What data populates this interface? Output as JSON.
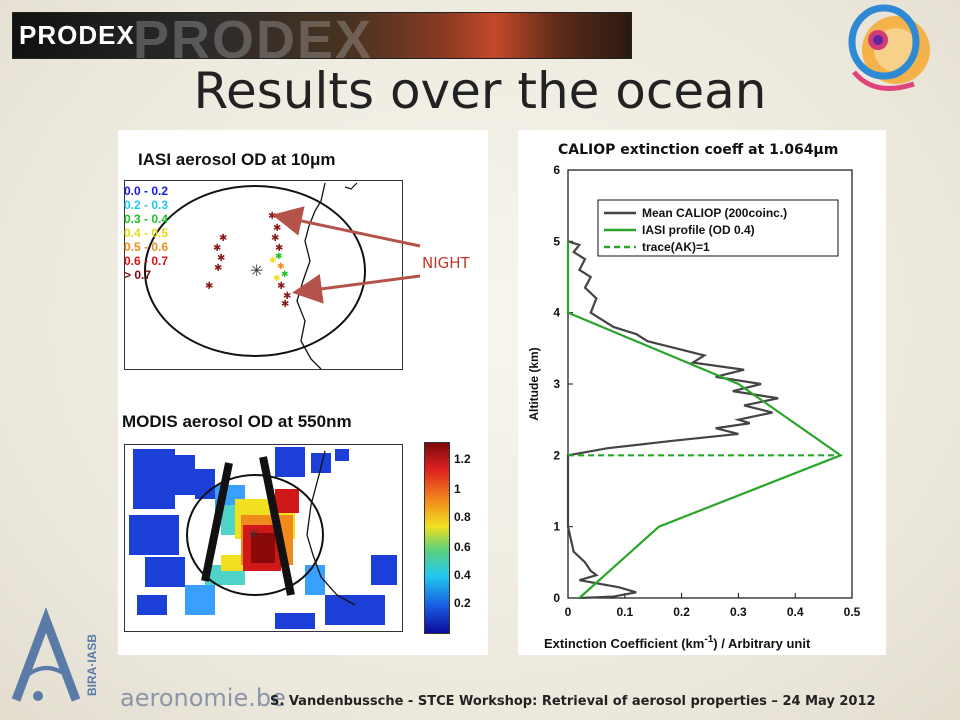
{
  "header": {
    "banner_text": "PRODEX",
    "title": "Results over the ocean"
  },
  "iasi_panel": {
    "title": "IASI aerosol OD at 10μm",
    "legend": [
      {
        "label": "0.0 - 0.2",
        "color": "#1a1adf"
      },
      {
        "label": "0.2 - 0.3",
        "color": "#22c8f0"
      },
      {
        "label": "0.3 - 0.4",
        "color": "#1fc21f"
      },
      {
        "label": "0.4 - 0.5",
        "color": "#f0e020"
      },
      {
        "label": "0.5 - 0.6",
        "color": "#f08a1c"
      },
      {
        "label": "0.6 - 0.7",
        "color": "#d01818"
      },
      {
        "label": "> 0.7",
        "color": "#7a0a0a"
      }
    ]
  },
  "modis_panel": {
    "title": "MODIS aerosol OD at 550nm",
    "colorbar_labels": [
      "1.2",
      "1",
      "0.8",
      "0.6",
      "0.4",
      "0.2"
    ]
  },
  "annotation": {
    "night_label": "NIGHT"
  },
  "caliop_panel": {
    "title": "CALIOP extinction coeff at  1.064μm",
    "ylabel": "Altitude (km)",
    "xlabel_prefix": "Extinction Coefficient (km",
    "xlabel_sup": "-1",
    "xlabel_suffix": ") / Arbitrary unit",
    "legend": [
      {
        "label": "Mean CALIOP (200coinc.)",
        "color": "#444444",
        "style": "solid"
      },
      {
        "label": "IASI profile (OD 0.4)",
        "color": "#2aa52a",
        "style": "solid"
      },
      {
        "label": "trace(AK)=1",
        "color": "#2aa52a",
        "style": "dashed"
      }
    ]
  },
  "chart_data": {
    "type": "line",
    "title": "CALIOP extinction coeff at  1.064μm",
    "xlabel": "Extinction Coefficient (km-1) / Arbitrary unit",
    "ylabel": "Altitude (km)",
    "xlim": [
      0,
      0.5
    ],
    "ylim": [
      0,
      6
    ],
    "x_ticks": [
      "0",
      "0.1",
      "0.2",
      "0.3",
      "0.4",
      "0.5"
    ],
    "y_ticks": [
      "0",
      "1",
      "2",
      "3",
      "4",
      "5",
      "6"
    ],
    "series": [
      {
        "name": "Mean CALIOP (200coinc.)",
        "points": [
          [
            0.02,
            0.0
          ],
          [
            0.08,
            0.02
          ],
          [
            0.12,
            0.08
          ],
          [
            0.09,
            0.15
          ],
          [
            0.02,
            0.25
          ],
          [
            0.05,
            0.32
          ],
          [
            0.04,
            0.38
          ],
          [
            0.03,
            0.5
          ],
          [
            0.01,
            0.65
          ],
          [
            0.0,
            1.0
          ],
          [
            0.0,
            2.0
          ],
          [
            0.07,
            2.1
          ],
          [
            0.18,
            2.2
          ],
          [
            0.3,
            2.3
          ],
          [
            0.26,
            2.38
          ],
          [
            0.32,
            2.45
          ],
          [
            0.3,
            2.5
          ],
          [
            0.36,
            2.6
          ],
          [
            0.31,
            2.7
          ],
          [
            0.37,
            2.8
          ],
          [
            0.29,
            2.9
          ],
          [
            0.34,
            3.0
          ],
          [
            0.26,
            3.1
          ],
          [
            0.31,
            3.2
          ],
          [
            0.22,
            3.3
          ],
          [
            0.24,
            3.4
          ],
          [
            0.19,
            3.5
          ],
          [
            0.14,
            3.6
          ],
          [
            0.12,
            3.7
          ],
          [
            0.08,
            3.8
          ],
          [
            0.06,
            3.9
          ],
          [
            0.04,
            4.0
          ],
          [
            0.05,
            4.2
          ],
          [
            0.03,
            4.35
          ],
          [
            0.04,
            4.5
          ],
          [
            0.02,
            4.6
          ],
          [
            0.03,
            4.75
          ],
          [
            0.01,
            4.85
          ],
          [
            0.02,
            4.95
          ],
          [
            0.0,
            5.0
          ]
        ]
      },
      {
        "name": "IASI profile (OD 0.4)",
        "points": [
          [
            0.02,
            0.0
          ],
          [
            0.16,
            1.0
          ],
          [
            0.48,
            2.0
          ],
          [
            0.3,
            3.0
          ],
          [
            0.0,
            4.0
          ],
          [
            0.0,
            5.0
          ]
        ]
      },
      {
        "name": "trace(AK)=1",
        "points": [
          [
            0.0,
            2.0
          ],
          [
            0.48,
            2.0
          ]
        ],
        "style": "dashed"
      }
    ]
  },
  "footer": {
    "org_name": "aeronomie.be",
    "text": "S. Vandenbussche - STCE Workshop: Retrieval of aerosol properties – 24 May 2012"
  }
}
